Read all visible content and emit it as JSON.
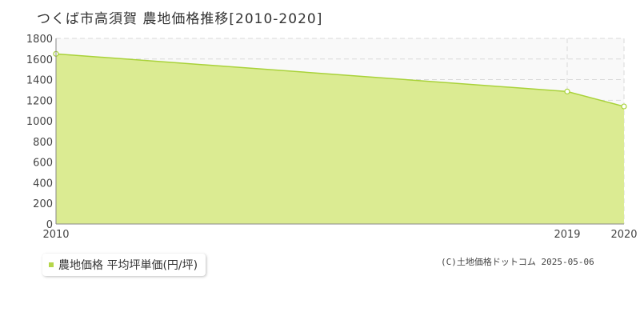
{
  "title": "つくば市高須賀 農地価格推移[2010-2020]",
  "legend": {
    "label": "農地価格 平均坪単価(円/坪)"
  },
  "copyright": "(C)土地価格ドットコム 2025-05-06",
  "colors": {
    "fill": "#dbeb92",
    "line": "#a9d23a",
    "swatch": "#b5d64a",
    "grid": "#d9d9d9",
    "plot_bg": "#f9f9f9"
  },
  "chart_data": {
    "type": "area",
    "x": [
      2010,
      2019,
      2020
    ],
    "series": [
      {
        "name": "農地価格 平均坪単価(円/坪)",
        "values": [
          1650,
          1285,
          1140
        ]
      }
    ],
    "xlim": [
      2010,
      2020
    ],
    "xticks": [
      "2010",
      "2019",
      "2020"
    ],
    "ylim": [
      0,
      1800
    ],
    "yticks": [
      "0",
      "200",
      "400",
      "600",
      "800",
      "1000",
      "1200",
      "1400",
      "1600",
      "1800"
    ],
    "grid": true,
    "legend_position": "bottom-left"
  }
}
